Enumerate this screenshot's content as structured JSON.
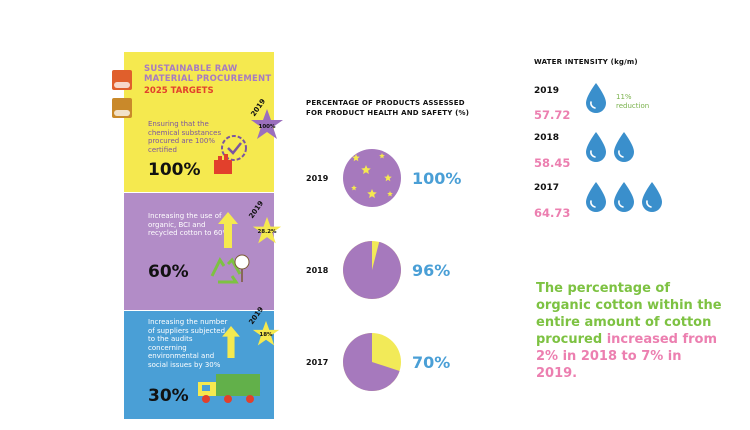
{
  "left": {
    "title": "SUSTAINABLE RAW MATERIAL PROCUREMENT",
    "subtitle": "2025 TARGETS",
    "targets": [
      {
        "text": "Ensuring that the chemical substances procured are 100% certified",
        "value": "100%",
        "year_tag": "2019",
        "progress": "100%"
      },
      {
        "text": "Increasing the use of organic, BCI and recycled cotton to 60%",
        "value": "60%",
        "year_tag": "2019",
        "progress": "28.2%"
      },
      {
        "text": "Increasing the number of suppliers subjected to the audits concerning environmental and social issues by 30%",
        "value": "30%",
        "year_tag": "2019",
        "progress": "18%"
      }
    ]
  },
  "chart_data": {
    "type": "pie",
    "title": "PERCENTAGE OF PRODUCTS ASSESSED FOR PRODUCT HEALTH AND SAFETY (%)",
    "categories": [
      "2019",
      "2018",
      "2017"
    ],
    "values": [
      100,
      96,
      70
    ],
    "labels": [
      "100%",
      "96%",
      "70%"
    ],
    "colors": {
      "assessed": "#a679bd",
      "remaining": "#f2ea58"
    }
  },
  "water": {
    "title": "WATER INTENSITY (kg/m)",
    "rows": [
      {
        "year": "2019",
        "value": "57.72",
        "drops": 1
      },
      {
        "year": "2018",
        "value": "58.45",
        "drops": 2
      },
      {
        "year": "2017",
        "value": "64.73",
        "drops": 3
      }
    ],
    "note": "11% reduction"
  },
  "summary": {
    "part1": "The percentage of organic cotton within the entire amount of cotton procured",
    "part2": "increased from 2% in 2018 to 7% in 2019."
  },
  "colors": {
    "yellow": "#f5e94f",
    "purple": "#b28cc7",
    "blue": "#4a9fd6",
    "pink": "#ec7fb0",
    "green": "#7dc242"
  }
}
